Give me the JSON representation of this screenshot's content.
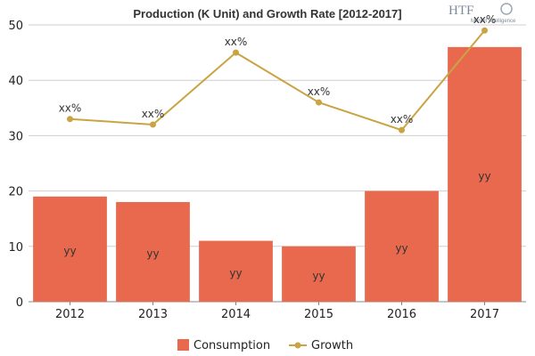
{
  "chart_data": {
    "type": "bar",
    "title": "Production (K Unit) and Growth Rate [2012-2017]",
    "categories": [
      "2012",
      "2013",
      "2014",
      "2015",
      "2016",
      "2017"
    ],
    "series": [
      {
        "name": "Consumption",
        "type": "bar",
        "values": [
          19,
          18,
          11,
          10,
          20,
          46
        ],
        "labels": [
          "yy",
          "yy",
          "yy",
          "yy",
          "yy",
          "yy"
        ],
        "color": "#e8694d"
      },
      {
        "name": "Growth",
        "type": "line",
        "values": [
          33,
          32,
          45,
          36,
          31,
          49
        ],
        "labels": [
          "xx%",
          "xx%",
          "xx%",
          "xx%",
          "xx%",
          "xx%"
        ],
        "color": "#c9a443"
      }
    ],
    "ylim": [
      0,
      50
    ],
    "yticks": [
      0,
      10,
      20,
      30,
      40,
      50
    ],
    "grid": true,
    "legend_position": "bottom"
  },
  "logo": {
    "name": "htf-logo",
    "text": "HTF",
    "subtext": "Market Intelligence"
  }
}
